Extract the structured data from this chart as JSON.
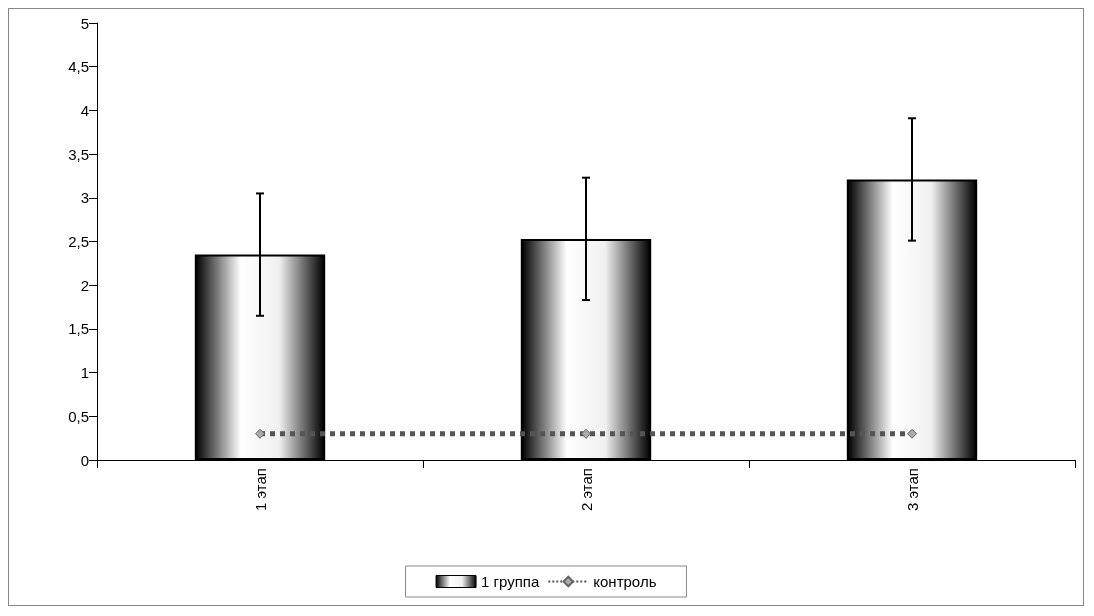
{
  "chart_data": {
    "type": "bar",
    "categories": [
      "1 этап",
      "2 этап",
      "3 этап"
    ],
    "series": [
      {
        "name": "1 группа",
        "color": "#000000",
        "values": [
          2.35,
          2.53,
          3.21
        ],
        "errors": [
          0.7,
          0.7,
          0.7
        ]
      },
      {
        "name": "контроль",
        "type": "line",
        "color": "#555555",
        "values": [
          0.3,
          0.3,
          0.3
        ],
        "marker": "diamond",
        "line_style": "dotted"
      }
    ],
    "ylim": [
      0,
      5
    ],
    "yticks": [
      0,
      {
        "value": 0.5,
        "label": "0,5"
      },
      1,
      {
        "value": 1.5,
        "label": "1,5"
      },
      2,
      {
        "value": 2.5,
        "label": "2,5"
      },
      3,
      {
        "value": 3.5,
        "label": "3,5"
      },
      4,
      {
        "value": 4.5,
        "label": "4,5"
      },
      5
    ],
    "grid": false,
    "legend": "bottom"
  }
}
